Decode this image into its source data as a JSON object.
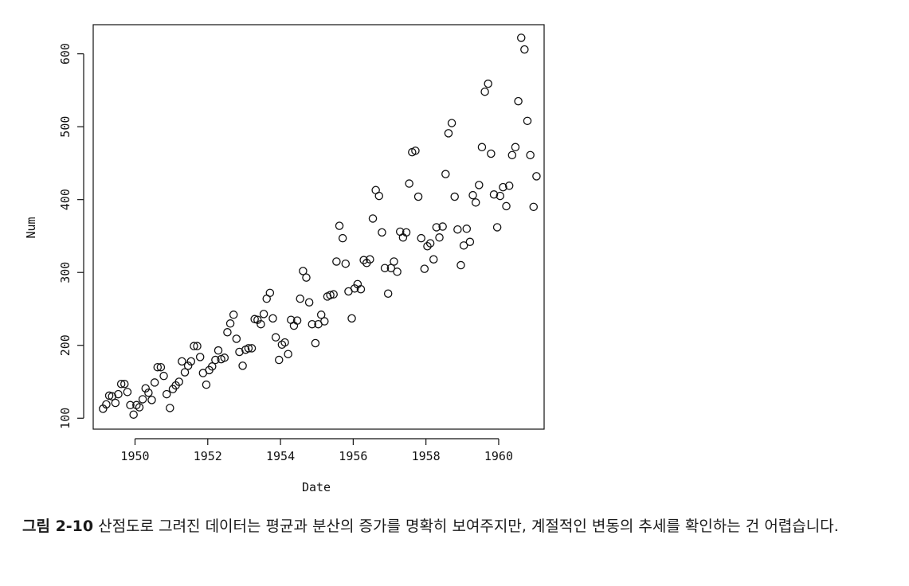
{
  "chart_data": {
    "type": "scatter",
    "title": "",
    "xlabel": "Date",
    "ylabel": "Num",
    "xlim": [
      1948.85,
      1961.25
    ],
    "ylim": [
      85,
      640
    ],
    "xticks": [
      1950,
      1952,
      1954,
      1956,
      1958,
      1960
    ],
    "yticks": [
      100,
      200,
      300,
      400,
      500,
      600
    ],
    "grid": false,
    "legend": "none",
    "marker": "open-circle",
    "series": [
      {
        "points": [
          [
            1949.12,
            113
          ],
          [
            1949.21,
            119
          ],
          [
            1949.29,
            131
          ],
          [
            1949.37,
            130
          ],
          [
            1949.46,
            121
          ],
          [
            1949.54,
            133
          ],
          [
            1949.62,
            147
          ],
          [
            1949.71,
            147
          ],
          [
            1949.79,
            136
          ],
          [
            1949.87,
            118
          ],
          [
            1949.96,
            105
          ],
          [
            1950.04,
            118
          ],
          [
            1950.12,
            115
          ],
          [
            1950.21,
            126
          ],
          [
            1950.29,
            141
          ],
          [
            1950.37,
            135
          ],
          [
            1950.46,
            125
          ],
          [
            1950.54,
            149
          ],
          [
            1950.62,
            170
          ],
          [
            1950.71,
            170
          ],
          [
            1950.79,
            158
          ],
          [
            1950.87,
            133
          ],
          [
            1950.96,
            114
          ],
          [
            1951.04,
            140
          ],
          [
            1951.12,
            145
          ],
          [
            1951.21,
            150
          ],
          [
            1951.29,
            178
          ],
          [
            1951.37,
            163
          ],
          [
            1951.46,
            172
          ],
          [
            1951.54,
            178
          ],
          [
            1951.62,
            199
          ],
          [
            1951.71,
            199
          ],
          [
            1951.79,
            184
          ],
          [
            1951.87,
            162
          ],
          [
            1951.96,
            146
          ],
          [
            1952.04,
            166
          ],
          [
            1952.12,
            171
          ],
          [
            1952.21,
            180
          ],
          [
            1952.29,
            193
          ],
          [
            1952.37,
            181
          ],
          [
            1952.46,
            183
          ],
          [
            1952.54,
            218
          ],
          [
            1952.62,
            230
          ],
          [
            1952.71,
            242
          ],
          [
            1952.79,
            209
          ],
          [
            1952.87,
            191
          ],
          [
            1952.96,
            172
          ],
          [
            1953.04,
            194
          ],
          [
            1953.12,
            196
          ],
          [
            1953.21,
            196
          ],
          [
            1953.29,
            236
          ],
          [
            1953.37,
            235
          ],
          [
            1953.46,
            229
          ],
          [
            1953.54,
            243
          ],
          [
            1953.62,
            264
          ],
          [
            1953.71,
            272
          ],
          [
            1953.79,
            237
          ],
          [
            1953.87,
            211
          ],
          [
            1953.96,
            180
          ],
          [
            1954.04,
            201
          ],
          [
            1954.12,
            204
          ],
          [
            1954.21,
            188
          ],
          [
            1954.29,
            235
          ],
          [
            1954.37,
            227
          ],
          [
            1954.46,
            234
          ],
          [
            1954.54,
            264
          ],
          [
            1954.62,
            302
          ],
          [
            1954.71,
            293
          ],
          [
            1954.79,
            259
          ],
          [
            1954.87,
            229
          ],
          [
            1954.96,
            203
          ],
          [
            1955.04,
            229
          ],
          [
            1955.12,
            242
          ],
          [
            1955.21,
            233
          ],
          [
            1955.29,
            267
          ],
          [
            1955.37,
            269
          ],
          [
            1955.46,
            270
          ],
          [
            1955.54,
            315
          ],
          [
            1955.62,
            364
          ],
          [
            1955.71,
            347
          ],
          [
            1955.79,
            312
          ],
          [
            1955.87,
            274
          ],
          [
            1955.96,
            237
          ],
          [
            1956.04,
            278
          ],
          [
            1956.12,
            284
          ],
          [
            1956.21,
            277
          ],
          [
            1956.29,
            317
          ],
          [
            1956.37,
            313
          ],
          [
            1956.46,
            318
          ],
          [
            1956.54,
            374
          ],
          [
            1956.62,
            413
          ],
          [
            1956.71,
            405
          ],
          [
            1956.79,
            355
          ],
          [
            1956.87,
            306
          ],
          [
            1956.96,
            271
          ],
          [
            1957.04,
            306
          ],
          [
            1957.12,
            315
          ],
          [
            1957.21,
            301
          ],
          [
            1957.29,
            356
          ],
          [
            1957.37,
            348
          ],
          [
            1957.46,
            355
          ],
          [
            1957.54,
            422
          ],
          [
            1957.62,
            465
          ],
          [
            1957.71,
            467
          ],
          [
            1957.79,
            404
          ],
          [
            1957.87,
            347
          ],
          [
            1957.96,
            305
          ],
          [
            1958.04,
            336
          ],
          [
            1958.12,
            340
          ],
          [
            1958.21,
            318
          ],
          [
            1958.29,
            362
          ],
          [
            1958.37,
            348
          ],
          [
            1958.46,
            363
          ],
          [
            1958.54,
            435
          ],
          [
            1958.62,
            491
          ],
          [
            1958.71,
            505
          ],
          [
            1958.79,
            404
          ],
          [
            1958.87,
            359
          ],
          [
            1958.96,
            310
          ],
          [
            1959.04,
            337
          ],
          [
            1959.12,
            360
          ],
          [
            1959.21,
            342
          ],
          [
            1959.29,
            406
          ],
          [
            1959.37,
            396
          ],
          [
            1959.46,
            420
          ],
          [
            1959.54,
            472
          ],
          [
            1959.62,
            548
          ],
          [
            1959.71,
            559
          ],
          [
            1959.79,
            463
          ],
          [
            1959.87,
            407
          ],
          [
            1959.96,
            362
          ],
          [
            1960.04,
            405
          ],
          [
            1960.12,
            417
          ],
          [
            1960.21,
            391
          ],
          [
            1960.29,
            419
          ],
          [
            1960.37,
            461
          ],
          [
            1960.46,
            472
          ],
          [
            1960.54,
            535
          ],
          [
            1960.62,
            622
          ],
          [
            1960.71,
            606
          ],
          [
            1960.79,
            508
          ],
          [
            1960.87,
            461
          ],
          [
            1960.96,
            390
          ],
          [
            1961.04,
            432
          ]
        ]
      }
    ]
  },
  "caption": {
    "label": "그림 2-10",
    "text": "산점도로 그려진 데이터는 평균과 분산의 증가를 명확히 보여주지만, 계절적인 변동의 추세를 확인하는 건 어렵습니다."
  }
}
